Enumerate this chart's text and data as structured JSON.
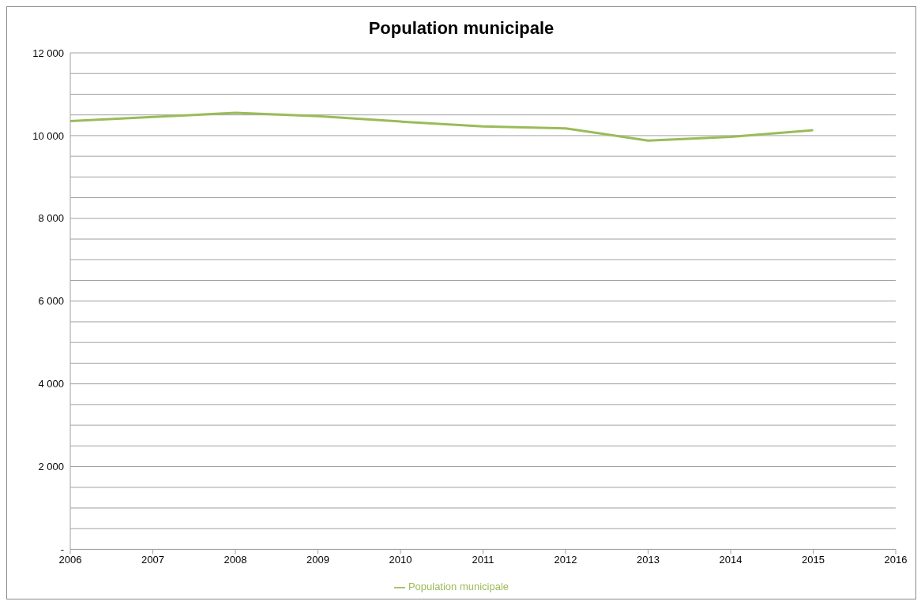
{
  "chart_data": {
    "type": "line",
    "title": "Population municipale",
    "categories": [
      "2006",
      "2007",
      "2008",
      "2009",
      "2010",
      "2011",
      "2012",
      "2013",
      "2014",
      "2015",
      "2016"
    ],
    "series": [
      {
        "name": "Population municipale",
        "color": "#9bbb59",
        "values": [
          10350,
          10450,
          10550,
          10470,
          10340,
          10220,
          10175,
          9880,
          9970,
          10130,
          null
        ]
      }
    ],
    "ylim": [
      0,
      12000
    ],
    "yticks": [
      {
        "value": 0,
        "label": "-"
      },
      {
        "value": 500,
        "label": null
      },
      {
        "value": 1000,
        "label": null
      },
      {
        "value": 1500,
        "label": null
      },
      {
        "value": 2000,
        "label": "2 000"
      },
      {
        "value": 2500,
        "label": null
      },
      {
        "value": 3000,
        "label": null
      },
      {
        "value": 3500,
        "label": null
      },
      {
        "value": 4000,
        "label": "4 000"
      },
      {
        "value": 4500,
        "label": null
      },
      {
        "value": 5000,
        "label": null
      },
      {
        "value": 5500,
        "label": null
      },
      {
        "value": 6000,
        "label": "6 000"
      },
      {
        "value": 6500,
        "label": null
      },
      {
        "value": 7000,
        "label": null
      },
      {
        "value": 7500,
        "label": null
      },
      {
        "value": 8000,
        "label": "8 000"
      },
      {
        "value": 8500,
        "label": null
      },
      {
        "value": 9000,
        "label": null
      },
      {
        "value": 9500,
        "label": null
      },
      {
        "value": 10000,
        "label": "10 000"
      },
      {
        "value": 10500,
        "label": null
      },
      {
        "value": 11000,
        "label": null
      },
      {
        "value": 11500,
        "label": null
      },
      {
        "value": 12000,
        "label": "12 000"
      }
    ],
    "grid": "y",
    "legend": "bottom",
    "marker": "none",
    "line_style": "solid"
  }
}
